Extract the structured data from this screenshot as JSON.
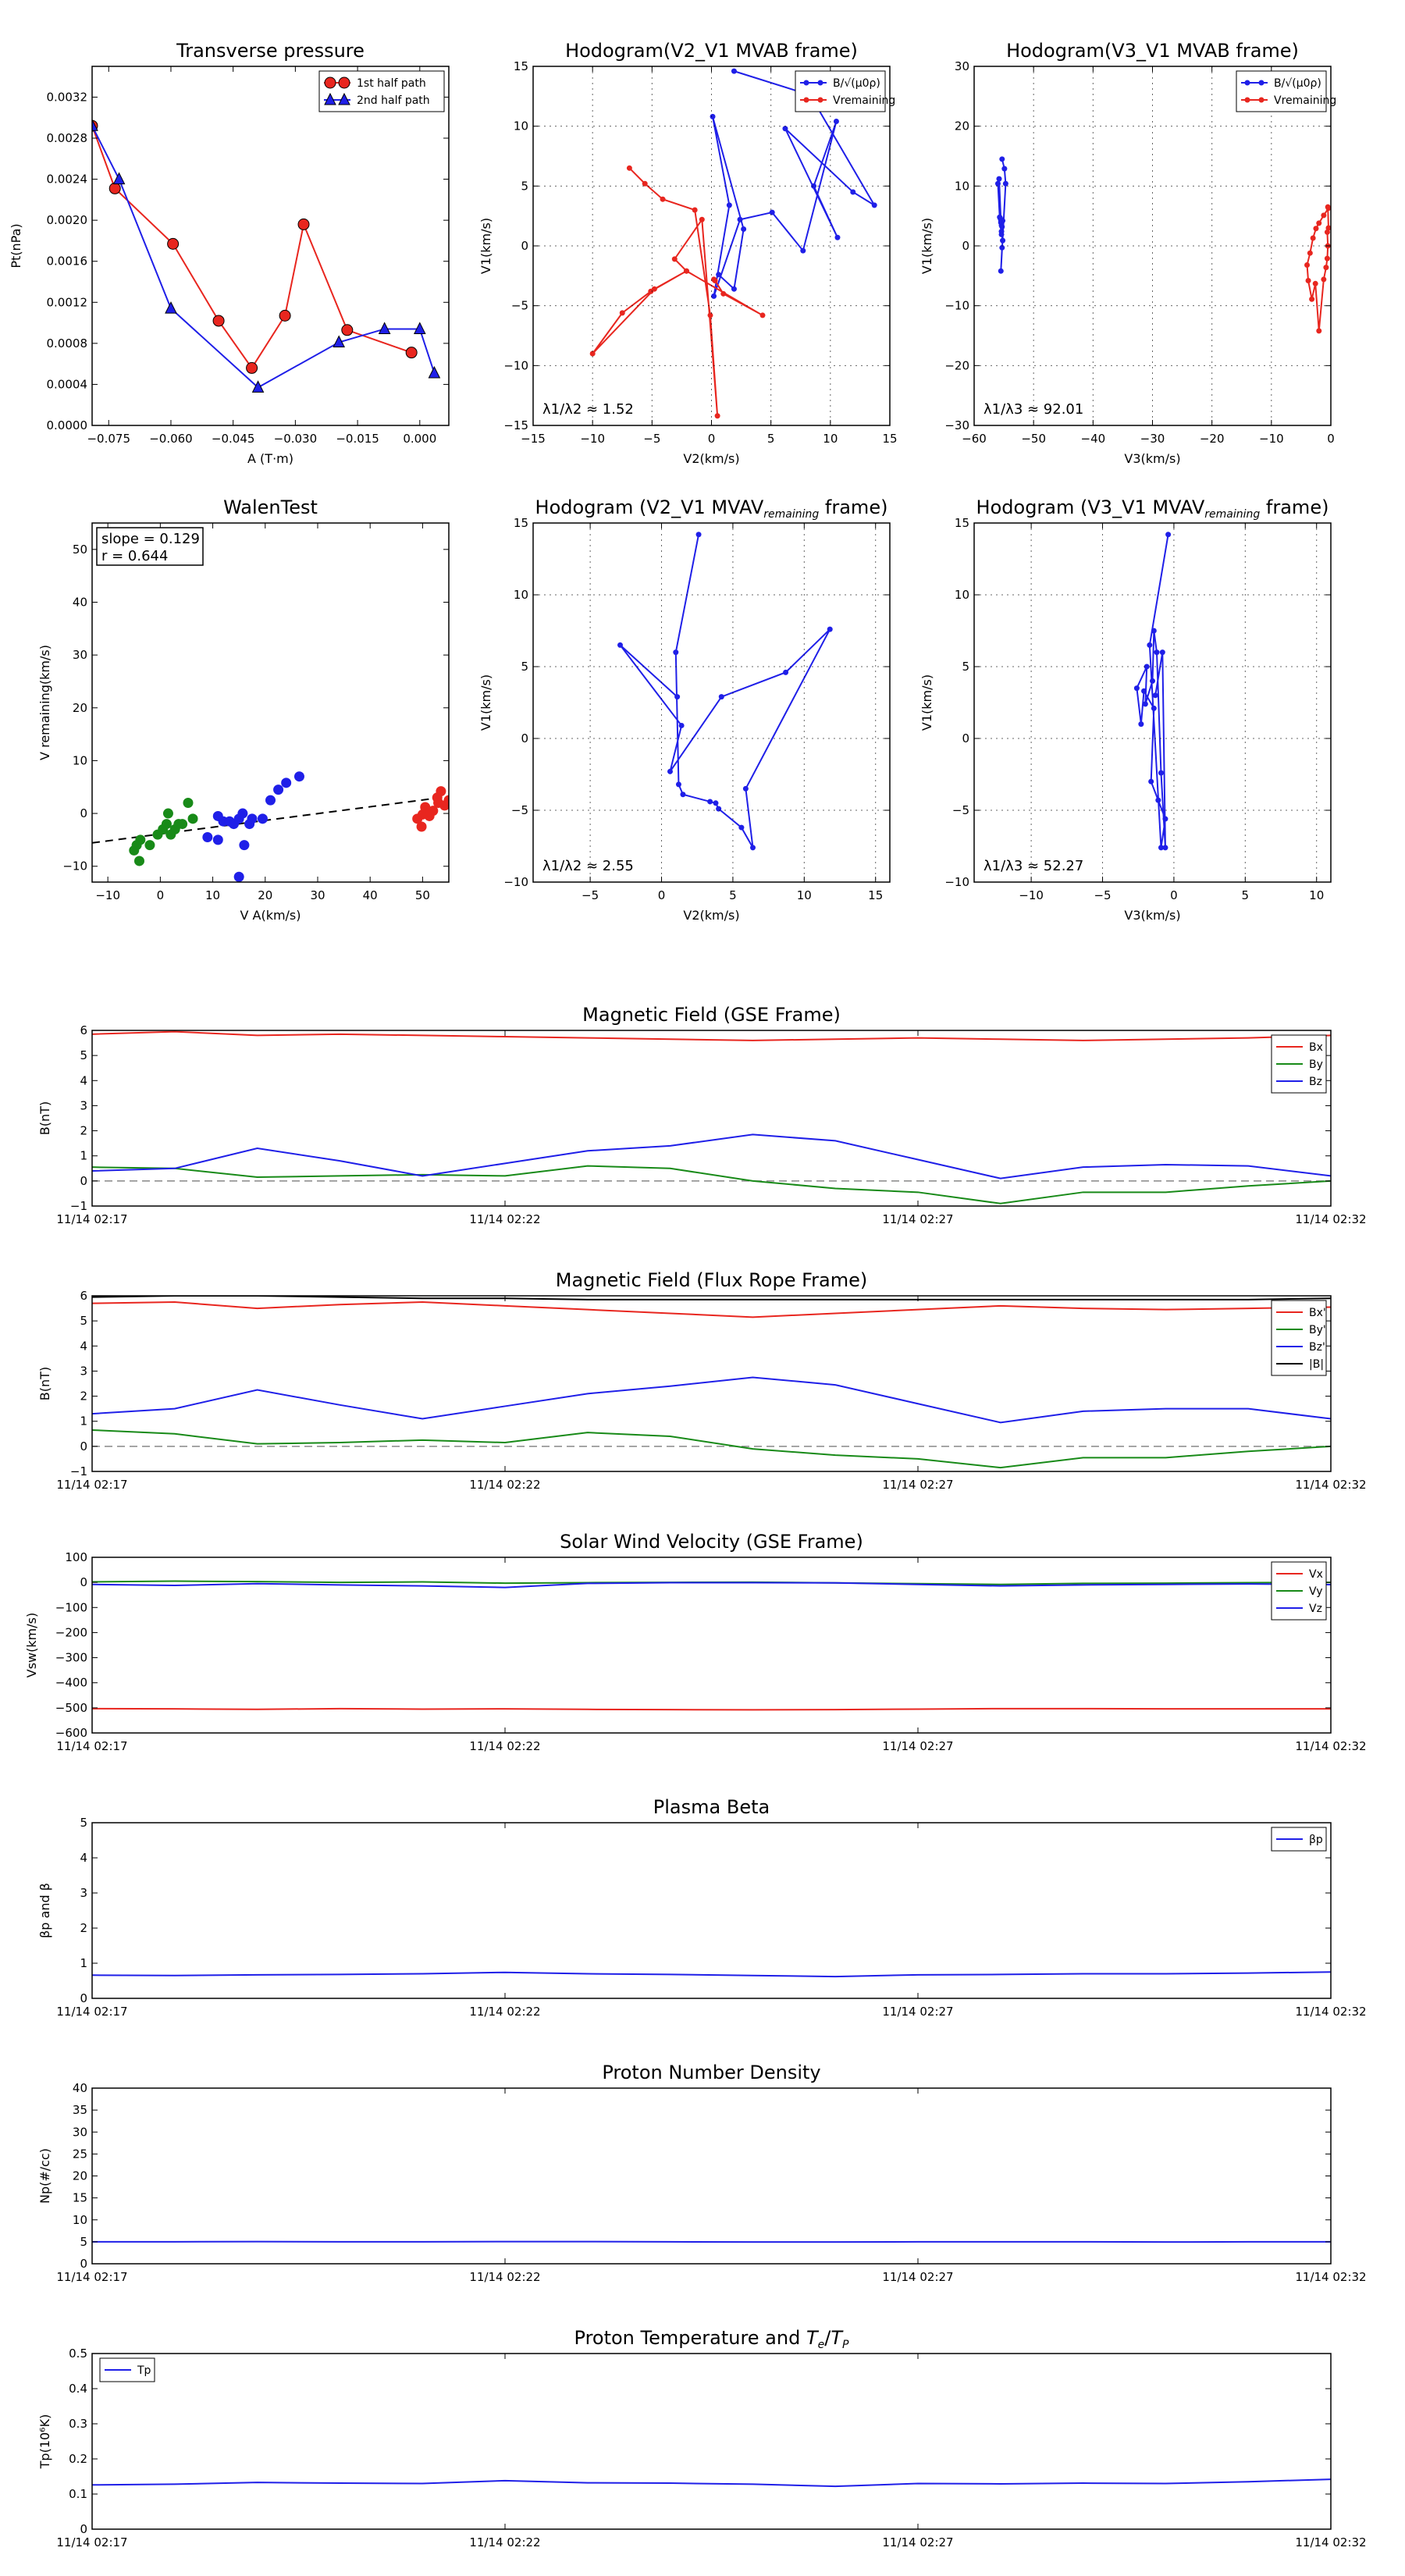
{
  "colors": {
    "red": "#e8261f",
    "blue": "#1f1fe8",
    "green": "#188a18",
    "black": "#000000",
    "gray": "#888888"
  },
  "chart_data": [
    {
      "id": "pt",
      "type": "line",
      "title": "Transverse pressure",
      "xlabel": "A (T·m)",
      "ylabel": "Pt(nPa)",
      "xlim": [
        -0.079,
        0.007
      ],
      "ylim": [
        0,
        0.0035
      ],
      "xticks": [
        -0.075,
        -0.06,
        -0.045,
        -0.03,
        -0.015,
        0.0
      ],
      "xticklabels": [
        "−0.075",
        "−0.060",
        "−0.045",
        "−0.030",
        "−0.015",
        "0.000"
      ],
      "yticks": [
        0,
        0.0004,
        0.0008,
        0.0012,
        0.0016,
        0.002,
        0.0024,
        0.0028,
        0.0032
      ],
      "yticklabels": [
        "0.0000",
        "0.0004",
        "0.0008",
        "0.0012",
        "0.0016",
        "0.0020",
        "0.0024",
        "0.0028",
        "0.0032"
      ],
      "legend_pos": "top-right",
      "series": [
        {
          "name": "1st half path",
          "color": "red",
          "marker": "circle",
          "x": [
            -0.079,
            -0.0735,
            -0.0595,
            -0.0485,
            -0.0405,
            -0.0325,
            -0.028,
            -0.0175,
            -0.002
          ],
          "y": [
            0.00292,
            0.00231,
            0.00177,
            0.00102,
            0.00056,
            0.00107,
            0.00196,
            0.00093,
            0.00071
          ]
        },
        {
          "name": "2nd half path",
          "color": "blue",
          "marker": "triangle",
          "x": [
            -0.079,
            -0.0725,
            -0.06,
            -0.039,
            -0.0195,
            -0.0085,
            0.0,
            0.0035
          ],
          "y": [
            0.00292,
            0.0024,
            0.00114,
            0.00037,
            0.00081,
            0.00094,
            0.00094,
            0.00051
          ]
        }
      ]
    },
    {
      "id": "h21",
      "type": "line",
      "title": "Hodogram(V2_V1 MVAB frame)",
      "xlabel": "V2(km/s)",
      "ylabel": "V1(km/s)",
      "xlim": [
        -15,
        15
      ],
      "ylim": [
        -15,
        15
      ],
      "xticks": [
        -15,
        -10,
        -5,
        0,
        5,
        10,
        15
      ],
      "yticks": [
        -15,
        -10,
        -5,
        0,
        5,
        10,
        15
      ],
      "grid": true,
      "annotation": "λ1/λ2 ≈ 1.52",
      "legend_pos": "top-right",
      "series": [
        {
          "name": "B/√(μ0ρ)",
          "color": "blue",
          "marker": "dot",
          "x": [
            1.9,
            8.3,
            13.7,
            11.9,
            6.2,
            10.6,
            8.6,
            10.5,
            7.7,
            5.1,
            2.4,
            0.2,
            1.5,
            0.1,
            2.7,
            1.9,
            0.6
          ],
          "y": [
            14.6,
            12.6,
            3.4,
            4.5,
            9.8,
            0.7,
            5.0,
            10.4,
            -0.4,
            2.8,
            2.2,
            -4.2,
            3.4,
            10.8,
            1.4,
            -3.6,
            -2.4
          ]
        },
        {
          "name": "Vremaining",
          "color": "red",
          "marker": "dot",
          "x": [
            -6.9,
            -5.6,
            -4.1,
            -1.4,
            -0.1,
            0.5,
            -0.8,
            -3.1,
            -2.1,
            -5.1,
            -7.5,
            -10.0,
            -4.8,
            -2.1,
            4.3,
            1.0,
            0.3,
            0.2
          ],
          "y": [
            6.5,
            5.2,
            3.9,
            3.0,
            -5.8,
            -14.2,
            2.2,
            -1.1,
            -2.1,
            -3.8,
            -5.6,
            -9.0,
            -3.6,
            -2.1,
            -5.8,
            -4.0,
            -2.9,
            -2.8
          ]
        }
      ]
    },
    {
      "id": "h31",
      "type": "line",
      "title": "Hodogram(V3_V1 MVAB frame)",
      "xlabel": "V3(km/s)",
      "ylabel": "V1(km/s)",
      "xlim": [
        -60,
        0
      ],
      "ylim": [
        -30,
        30
      ],
      "xticks": [
        -60,
        -50,
        -40,
        -30,
        -20,
        -10,
        0
      ],
      "yticks": [
        -30,
        -20,
        -10,
        0,
        10,
        20,
        30
      ],
      "grid": true,
      "annotation": "λ1/λ3 ≈ 92.01",
      "legend_pos": "top-right",
      "series": [
        {
          "name": "B/√(μ0ρ)",
          "color": "blue",
          "marker": "dot",
          "x": [
            -55.3,
            -54.9,
            -54.7,
            -55.5,
            -55.3,
            -55.2,
            -55.4,
            -55.4,
            -55.5,
            -55.6,
            -55.2,
            -55.3,
            -55.4,
            -55.7,
            -56.0,
            -55.8,
            -55.5
          ],
          "y": [
            14.5,
            12.9,
            10.4,
            -4.2,
            -0.3,
            0.9,
            2.4,
            3.4,
            3.9,
            4.6,
            4.2,
            3.2,
            1.9,
            4.8,
            10.4,
            11.2,
            4.2
          ]
        },
        {
          "name": "Vremaining",
          "color": "red",
          "marker": "dot",
          "x": [
            -0.4,
            -1.2,
            -2.0,
            -2.5,
            -3.0,
            -3.5,
            -4.0,
            -3.8,
            -3.2,
            -2.6,
            -2.0,
            -1.2,
            -0.8,
            -0.6,
            -0.5,
            -0.6,
            -0.4,
            -0.5
          ],
          "y": [
            6.3,
            5.1,
            3.8,
            2.9,
            1.3,
            -1.2,
            -3.2,
            -5.8,
            -8.9,
            -6.3,
            -14.2,
            -5.6,
            -3.6,
            -2.1,
            0.0,
            2.3,
            3.0,
            6.5
          ]
        }
      ]
    },
    {
      "id": "walen",
      "type": "scatter",
      "title": "WalenTest",
      "xlabel": "V A(km/s)",
      "ylabel": "V remaining(km/s)",
      "xlim": [
        -13,
        55
      ],
      "ylim": [
        -13,
        55
      ],
      "xticks": [
        -10,
        0,
        10,
        20,
        30,
        40,
        50
      ],
      "yticks": [
        -10,
        0,
        10,
        20,
        30,
        40,
        50
      ],
      "annotation_lines": [
        "slope = 0.129",
        "r = 0.644"
      ],
      "fit": {
        "slope": 0.129,
        "intercept": -3.9
      },
      "series": [
        {
          "color": "green",
          "x": [
            -4.5,
            -5,
            -3.8,
            -2,
            -0.5,
            0.5,
            1.2,
            2,
            2.8,
            3.5,
            4.2,
            5.3,
            6.2,
            1.5,
            -4
          ],
          "y": [
            -6,
            -7,
            -5,
            -6,
            -4,
            -3,
            -2,
            -4,
            -3,
            -2,
            -2,
            2,
            -1,
            0,
            -9
          ]
        },
        {
          "color": "blue",
          "x": [
            9,
            11,
            12,
            13.2,
            14,
            15,
            15.7,
            16,
            17,
            17.5,
            19.5,
            21,
            22.5,
            24,
            26.5,
            11,
            15
          ],
          "y": [
            -4.5,
            -0.5,
            -1.5,
            -1.5,
            -2,
            -1,
            0,
            -6,
            -2,
            -1,
            -1,
            2.5,
            4.5,
            5.8,
            7,
            -5,
            -12
          ]
        },
        {
          "color": "red",
          "x": [
            49,
            49.8,
            50.5,
            51.3,
            52,
            52.8,
            53.5,
            54.2,
            55,
            50,
            51.5,
            53
          ],
          "y": [
            -1,
            -2.5,
            1.2,
            -0.5,
            0.5,
            3,
            4.2,
            1.5,
            2.5,
            -0.2,
            0.3,
            2
          ]
        }
      ]
    },
    {
      "id": "hv21",
      "type": "line",
      "title": "Hodogram (V2_V1 MVAVremaining frame)",
      "xlabel": "V2(km/s)",
      "ylabel": "V1(km/s)",
      "xlim": [
        -9,
        16
      ],
      "ylim": [
        -10,
        15
      ],
      "xticks": [
        -5,
        0,
        5,
        10,
        15
      ],
      "yticks": [
        -10,
        -5,
        0,
        5,
        10,
        15
      ],
      "grid": true,
      "annotation": "λ1/λ2 ≈ 2.55",
      "series": [
        {
          "color": "blue",
          "marker": "dot",
          "x": [
            2.6,
            1.0,
            1.2,
            1.5,
            3.4,
            3.8,
            4.0,
            5.6,
            6.4,
            5.9,
            11.8,
            8.7,
            4.2,
            0.6,
            1.4,
            -2.9,
            1.1
          ],
          "y": [
            14.2,
            6.0,
            -3.2,
            -3.9,
            -4.4,
            -4.5,
            -4.9,
            -6.2,
            -7.6,
            -3.5,
            7.6,
            4.6,
            2.9,
            -2.3,
            0.9,
            6.5,
            2.9
          ]
        }
      ]
    },
    {
      "id": "hv31",
      "type": "line",
      "title": "Hodogram (V3_V1 MVAVremaining frame)",
      "xlabel": "V3(km/s)",
      "ylabel": "V1(km/s)",
      "xlim": [
        -14,
        11
      ],
      "ylim": [
        -10,
        15
      ],
      "xticks": [
        -10,
        -5,
        0,
        5,
        10
      ],
      "yticks": [
        -10,
        -5,
        0,
        5,
        10,
        15
      ],
      "grid": true,
      "annotation": "λ1/λ3 ≈ 52.27",
      "series": [
        {
          "color": "blue",
          "marker": "dot",
          "x": [
            -0.4,
            -1.7,
            -0.9,
            -0.6,
            -1.1,
            -1.6,
            -1.4,
            -2.1,
            -2.3,
            -2.6,
            -1.9,
            -2.0,
            -1.5,
            -1.4,
            -1.2,
            -0.9,
            -0.6,
            -0.8,
            -1.3
          ],
          "y": [
            14.2,
            6.5,
            -7.6,
            -5.6,
            -4.3,
            -3.0,
            2.1,
            3.3,
            1.0,
            3.5,
            5.0,
            2.4,
            4.0,
            7.5,
            6.0,
            -2.4,
            -7.6,
            6.0,
            3.0
          ]
        }
      ]
    },
    {
      "id": "bgse",
      "type": "line",
      "title": "Magnetic Field (GSE Frame)",
      "ylabel": "B(nT)",
      "xticklabels": [
        "11/14 02:17",
        "11/14 02:22",
        "11/14 02:27",
        "11/14 02:32"
      ],
      "xmax": 15,
      "ylim": [
        -1,
        6
      ],
      "yticks": [
        -1,
        0,
        1,
        2,
        3,
        4,
        5,
        6
      ],
      "zero_line": true,
      "legend_pos": "top-right",
      "series": [
        {
          "name": "Bx",
          "color": "red",
          "values": [
            5.85,
            5.95,
            5.8,
            5.85,
            5.8,
            5.75,
            5.7,
            5.65,
            5.6,
            5.65,
            5.7,
            5.65,
            5.6,
            5.65,
            5.7,
            5.8
          ]
        },
        {
          "name": "By",
          "color": "green",
          "values": [
            0.55,
            0.5,
            0.15,
            0.2,
            0.25,
            0.2,
            0.6,
            0.5,
            0.0,
            -0.3,
            -0.45,
            -0.9,
            -0.45,
            -0.45,
            -0.2,
            0.0
          ]
        },
        {
          "name": "Bz",
          "color": "blue",
          "values": [
            0.4,
            0.5,
            1.3,
            0.8,
            0.2,
            0.7,
            1.2,
            1.4,
            1.85,
            1.6,
            0.85,
            0.1,
            0.55,
            0.65,
            0.6,
            0.2
          ]
        }
      ]
    },
    {
      "id": "bfr",
      "type": "line",
      "title": "Magnetic Field (Flux Rope Frame)",
      "ylabel": "B(nT)",
      "xticklabels": [
        "11/14 02:17",
        "11/14 02:22",
        "11/14 02:27",
        "11/14 02:32"
      ],
      "xmax": 15,
      "ylim": [
        -1,
        6
      ],
      "yticks": [
        -1,
        0,
        1,
        2,
        3,
        4,
        5,
        6
      ],
      "zero_line": true,
      "legend_pos": "top-right",
      "series": [
        {
          "name": "Bx'",
          "color": "red",
          "values": [
            5.7,
            5.75,
            5.5,
            5.65,
            5.75,
            5.6,
            5.45,
            5.3,
            5.15,
            5.3,
            5.45,
            5.6,
            5.5,
            5.45,
            5.5,
            5.55
          ]
        },
        {
          "name": "By'",
          "color": "green",
          "values": [
            0.65,
            0.5,
            0.1,
            0.15,
            0.25,
            0.15,
            0.55,
            0.4,
            -0.1,
            -0.35,
            -0.5,
            -0.85,
            -0.45,
            -0.45,
            -0.2,
            0.0
          ]
        },
        {
          "name": "Bz'",
          "color": "blue",
          "values": [
            1.3,
            1.5,
            2.25,
            1.65,
            1.1,
            1.6,
            2.1,
            2.4,
            2.75,
            2.45,
            1.7,
            0.95,
            1.4,
            1.5,
            1.5,
            1.1
          ]
        },
        {
          "name": "|B|",
          "color": "black",
          "values": [
            5.95,
            6.0,
            6.0,
            5.95,
            5.9,
            5.9,
            5.85,
            5.85,
            5.85,
            5.85,
            5.85,
            5.85,
            5.85,
            5.85,
            5.85,
            5.9
          ]
        }
      ]
    },
    {
      "id": "vsw",
      "type": "line",
      "title": "Solar Wind Velocity (GSE Frame)",
      "ylabel": "Vsw(km/s)",
      "xticklabels": [
        "11/14 02:17",
        "11/14 02:22",
        "11/14 02:27",
        "11/14 02:32"
      ],
      "xmax": 15,
      "ylim": [
        -600,
        100
      ],
      "yticks": [
        -600,
        -500,
        -400,
        -300,
        -200,
        -100,
        0,
        100
      ],
      "legend_pos": "top-right",
      "series": [
        {
          "name": "Vx",
          "color": "red",
          "values": [
            -503,
            -504,
            -506,
            -503,
            -505,
            -504,
            -506,
            -507,
            -508,
            -507,
            -505,
            -503,
            -503,
            -504,
            -504,
            -504
          ]
        },
        {
          "name": "Vy",
          "color": "green",
          "values": [
            2,
            5,
            3,
            0,
            2,
            -3,
            -1,
            0,
            1,
            -2,
            -5,
            -8,
            -4,
            -3,
            -1,
            0
          ]
        },
        {
          "name": "Vz",
          "color": "blue",
          "values": [
            -8,
            -12,
            -5,
            -10,
            -14,
            -20,
            -4,
            -1,
            -1,
            -2,
            -8,
            -14,
            -10,
            -8,
            -6,
            -9
          ]
        }
      ]
    },
    {
      "id": "beta",
      "type": "line",
      "title": "Plasma Beta",
      "ylabel": "βp and β",
      "xticklabels": [
        "11/14 02:17",
        "11/14 02:22",
        "11/14 02:27",
        "11/14 02:32"
      ],
      "xmax": 15,
      "ylim": [
        0,
        5
      ],
      "yticks": [
        0,
        1,
        2,
        3,
        4,
        5
      ],
      "legend_pos": "top-right",
      "series": [
        {
          "name": "βp",
          "color": "blue",
          "values": [
            0.66,
            0.65,
            0.67,
            0.68,
            0.7,
            0.74,
            0.7,
            0.68,
            0.65,
            0.62,
            0.67,
            0.68,
            0.7,
            0.7,
            0.72,
            0.75
          ]
        }
      ]
    },
    {
      "id": "np",
      "type": "line",
      "title": "Proton Number Density",
      "ylabel": "Np(#/cc)",
      "xticklabels": [
        "11/14 02:17",
        "11/14 02:22",
        "11/14 02:27",
        "11/14 02:32"
      ],
      "xmax": 15,
      "ylim": [
        0,
        40
      ],
      "yticks": [
        0,
        5,
        10,
        15,
        20,
        25,
        30,
        35,
        40
      ],
      "series": [
        {
          "color": "blue",
          "values": [
            5.0,
            5.0,
            5.05,
            5.0,
            5.0,
            5.05,
            5.05,
            5.0,
            4.95,
            4.95,
            5.0,
            5.0,
            5.0,
            4.95,
            5.0,
            5.0
          ]
        }
      ]
    },
    {
      "id": "tp",
      "type": "line",
      "title": "Proton Temperature and Te/Tp",
      "ylabel": "Tp(10⁶K)",
      "xticklabels": [
        "11/14 02:17",
        "11/14 02:22",
        "11/14 02:27",
        "11/14 02:32"
      ],
      "xmax": 15,
      "ylim": [
        0,
        0.5
      ],
      "yticks": [
        0,
        0.1,
        0.2,
        0.3,
        0.4,
        0.5
      ],
      "legend_pos": "top-left",
      "series": [
        {
          "name": "Tp",
          "color": "blue",
          "values": [
            0.126,
            0.128,
            0.133,
            0.131,
            0.13,
            0.138,
            0.132,
            0.131,
            0.128,
            0.122,
            0.13,
            0.129,
            0.131,
            0.13,
            0.135,
            0.142
          ]
        }
      ]
    }
  ]
}
